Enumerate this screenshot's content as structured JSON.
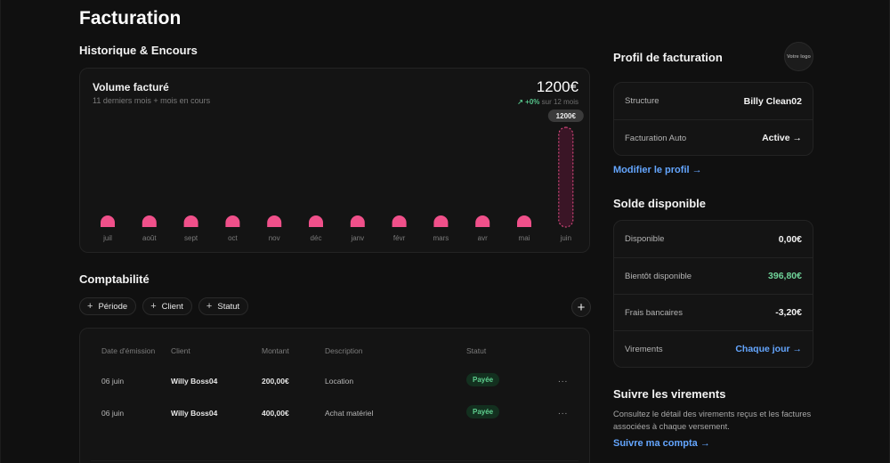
{
  "page": {
    "title": "Facturation"
  },
  "history": {
    "section_title": "Historique & Encours",
    "card_title": "Volume facturé",
    "card_subtitle": "11 derniers mois + mois en cours",
    "total": "1200€",
    "delta": "↗ +0%",
    "delta_period": "sur 12 mois",
    "tooltip": "1200€"
  },
  "chart_data": {
    "type": "bar",
    "categories": [
      "juil",
      "août",
      "sept",
      "oct",
      "nov",
      "déc",
      "janv",
      "févr",
      "mars",
      "avr",
      "mai",
      "juin"
    ],
    "values": [
      0,
      0,
      0,
      0,
      0,
      0,
      0,
      0,
      0,
      0,
      0,
      1200
    ],
    "title": "Volume facturé",
    "subtitle": "11 derniers mois + mois en cours",
    "ylim": [
      0,
      1200
    ],
    "highlight_index": 11,
    "bar_color": "#f0508a",
    "grid": false
  },
  "accounting": {
    "section_title": "Comptabilité",
    "filters": [
      "Période",
      "Client",
      "Statut"
    ],
    "add_symbol": "+",
    "columns": [
      "Date d'émission",
      "Client",
      "Montant",
      "Description",
      "Statut"
    ],
    "rows": [
      {
        "date": "06 juin",
        "client": "Willy Boss04",
        "amount": "200,00€",
        "description": "Location",
        "status": "Payée"
      },
      {
        "date": "06 juin",
        "client": "Willy Boss04",
        "amount": "400,00€",
        "description": "Achat matériel",
        "status": "Payée"
      }
    ],
    "row_menu": "..."
  },
  "profile": {
    "section_title": "Profil de facturation",
    "logo_text": "Votre logo",
    "rows": [
      {
        "label": "Structure",
        "value": "Billy Clean02"
      },
      {
        "label": "Facturation Auto",
        "value": "Active →"
      }
    ],
    "edit_link": "Modifier le profil →"
  },
  "balance": {
    "section_title": "Solde disponible",
    "rows": [
      {
        "label": "Disponible",
        "value": "0,00€"
      },
      {
        "label": "Bientôt disponible",
        "value": "396,80€"
      },
      {
        "label": "Frais bancaires",
        "value": "-3,20€"
      },
      {
        "label": "Virements",
        "value": "Chaque jour →"
      }
    ]
  },
  "transfers": {
    "section_title": "Suivre les virements",
    "description": "Consultez le détail des virements reçus et les factures associées à chaque versement.",
    "link": "Suivre ma compta →"
  },
  "colors": {
    "background": "#101010",
    "accent_blue": "#64a6ff",
    "accent_pink": "#f0508a",
    "accent_green": "#6fd399"
  }
}
